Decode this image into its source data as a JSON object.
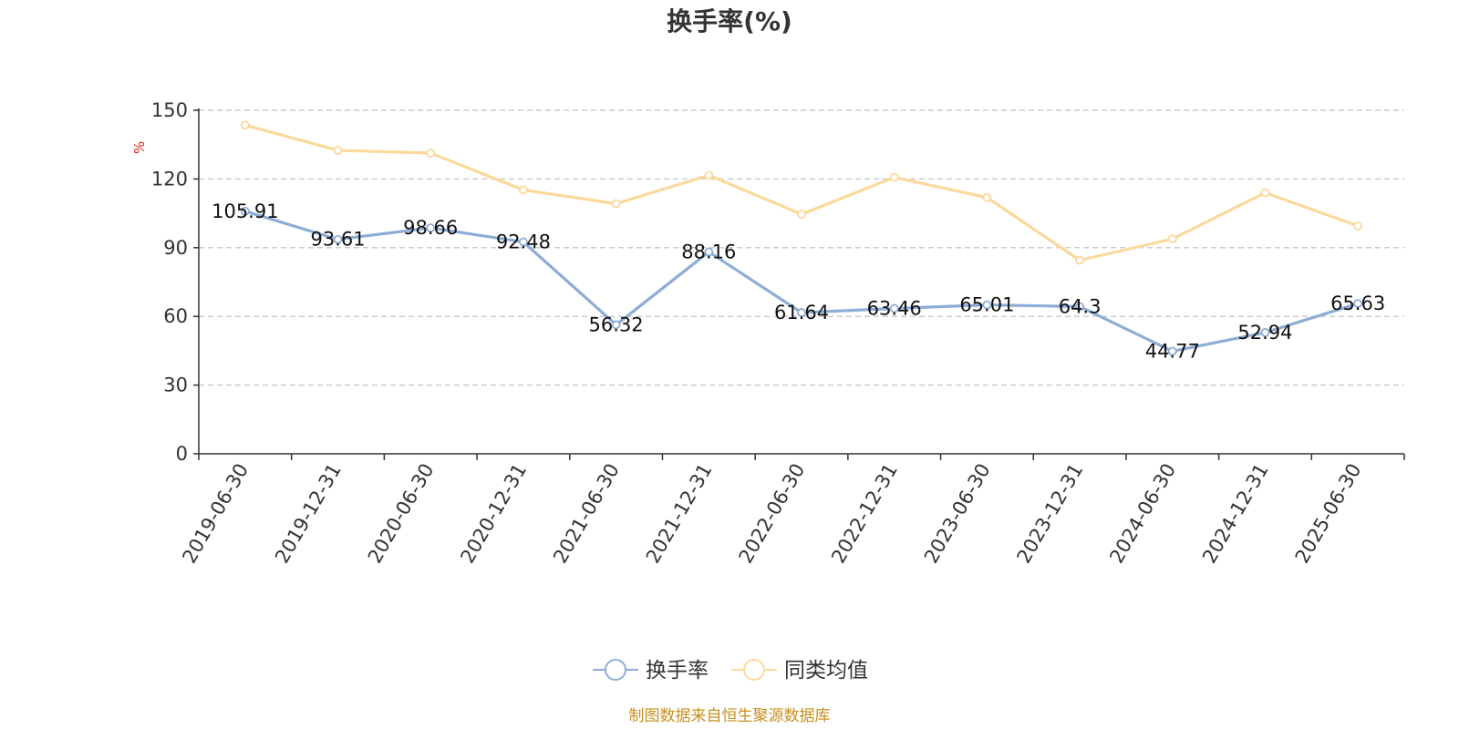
{
  "chart_data": {
    "type": "line",
    "title": "换手率(%)",
    "ylabel": "%",
    "xlabel": "",
    "ylim": [
      0,
      150
    ],
    "yticks": [
      0,
      30,
      60,
      90,
      120,
      150
    ],
    "grid": true,
    "legend_position": "bottom",
    "categories": [
      "2019-06-30",
      "2019-12-31",
      "2020-06-30",
      "2020-12-31",
      "2021-06-30",
      "2021-12-31",
      "2022-06-30",
      "2022-12-31",
      "2023-06-30",
      "2023-12-31",
      "2024-06-30",
      "2024-12-31",
      "2025-06-30"
    ],
    "series": [
      {
        "name": "换手率",
        "color": "#8eadd6",
        "show_labels": true,
        "values": [
          105.91,
          93.61,
          98.66,
          92.48,
          56.32,
          88.16,
          61.64,
          63.46,
          65.01,
          64.3,
          44.77,
          52.94,
          65.63
        ]
      },
      {
        "name": "同类均值",
        "color": "#fbd99b",
        "show_labels": false,
        "values": [
          143.5,
          132.5,
          131.3,
          115.2,
          109.2,
          121.6,
          104.6,
          120.7,
          111.9,
          84.5,
          93.8,
          114.0,
          99.5
        ]
      }
    ],
    "source": "制图数据来自恒生聚源数据库"
  }
}
